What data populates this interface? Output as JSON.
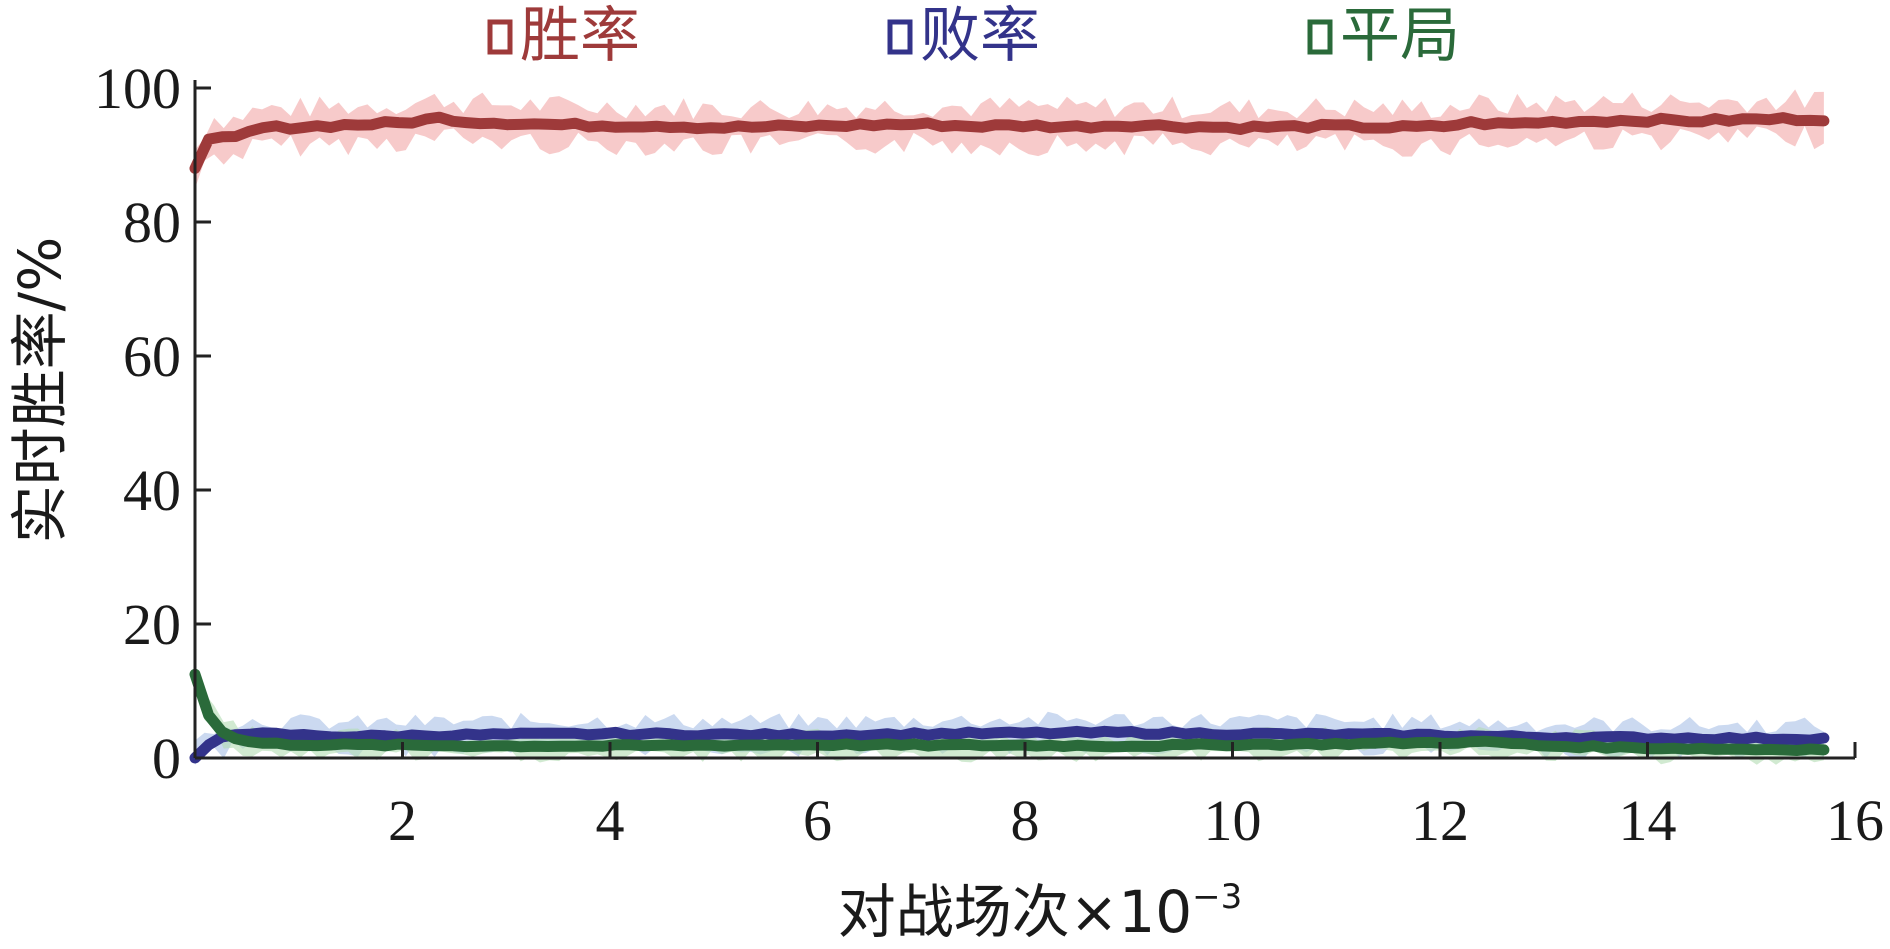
{
  "chart_data": {
    "type": "line",
    "xlabel_main": "对战场次×10",
    "xlabel_exp": "−3",
    "ylabel": "实时胜率/%",
    "xlim": [
      0,
      16
    ],
    "ylim": [
      0,
      100
    ],
    "xticks": [
      2,
      4,
      6,
      8,
      10,
      12,
      14,
      16
    ],
    "yticks": [
      0,
      20,
      40,
      60,
      80,
      100
    ],
    "grid": false,
    "legend_position": "top-center",
    "series": [
      {
        "name": "胜率",
        "color": "#9e3a3a",
        "band_color": "#f2a7a7",
        "noise": 3.5,
        "x": [
          0,
          0.15,
          0.35,
          0.6,
          1,
          1.5,
          2,
          2.2,
          2.4,
          2.6,
          3,
          3.5,
          4,
          4.5,
          5,
          5.5,
          6,
          6.5,
          7,
          7.5,
          8,
          8.5,
          9,
          9.5,
          10,
          10.5,
          11,
          11.5,
          12,
          12.3,
          12.6,
          13,
          13.5,
          14,
          14.5,
          15,
          15.5,
          15.7
        ],
        "values": [
          88,
          93,
          92.5,
          94,
          94.2,
          94.5,
          94.8,
          95.2,
          95.6,
          95,
          94.8,
          94.5,
          94.4,
          94.4,
          94.1,
          94.2,
          94.3,
          94.5,
          94.6,
          94.3,
          94.4,
          94.2,
          94.5,
          94.3,
          94.1,
          94.2,
          94.3,
          94.1,
          94.2,
          94.8,
          94.6,
          94.9,
          95.1,
          95.2,
          95.1,
          95.3,
          95.4,
          95.4
        ]
      },
      {
        "name": "败率",
        "color": "#33338a",
        "band_color": "#a9bfe6",
        "noise": 2.5,
        "x": [
          0,
          0.2,
          0.4,
          0.7,
          1,
          1.5,
          2,
          3,
          4,
          5,
          6,
          7,
          8,
          9,
          10,
          11,
          12,
          12.5,
          13,
          14,
          15,
          15.7
        ],
        "values": [
          0,
          3,
          3.5,
          3.6,
          3.4,
          3.2,
          3.3,
          3.5,
          3.6,
          3.5,
          3.4,
          3.6,
          3.7,
          3.8,
          3.6,
          3.5,
          3.4,
          3.2,
          3.1,
          3.0,
          2.9,
          2.9
        ]
      },
      {
        "name": "平局",
        "color": "#2a6a3a",
        "band_color": "#b3dcb3",
        "noise": 2.0,
        "x": [
          0,
          0.1,
          0.25,
          0.4,
          0.6,
          1,
          2,
          3,
          4,
          5,
          6,
          7,
          8,
          9,
          10,
          11,
          12,
          12.5,
          13,
          14,
          15,
          15.7
        ],
        "values": [
          12.5,
          7,
          4,
          2.8,
          2.2,
          2,
          1.9,
          1.8,
          1.8,
          1.9,
          2,
          1.9,
          1.9,
          1.8,
          2,
          2.1,
          2.3,
          2.4,
          1.8,
          1.5,
          1.3,
          1.3
        ]
      }
    ]
  }
}
